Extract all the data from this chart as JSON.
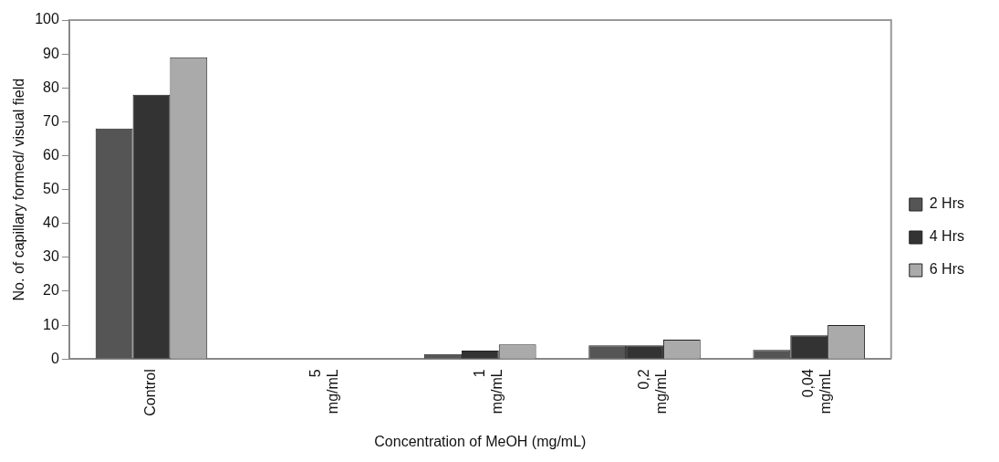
{
  "chart_data": {
    "type": "bar",
    "xlabel": "Concentration of MeOH (mg/mL)",
    "ylabel": "No. of capillary formed/ visual field",
    "categories": [
      "Control",
      "5 mg/mL",
      "1 mg/mL",
      "0,2 mg/mL",
      "0,04 mg/mL"
    ],
    "series": [
      {
        "name": "2 Hrs",
        "color": "#555555",
        "values": [
          68,
          0,
          1.5,
          4,
          2.7
        ]
      },
      {
        "name": "4 Hrs",
        "color": "#333333",
        "values": [
          78,
          0,
          2.5,
          4,
          7
        ]
      },
      {
        "name": "6 Hrs",
        "color": "#aaaaaa",
        "values": [
          89,
          0,
          4.3,
          5.7,
          10
        ]
      }
    ],
    "ylim": [
      0,
      100
    ],
    "yticks": [
      0,
      10,
      20,
      30,
      40,
      50,
      60,
      70,
      80,
      90,
      100
    ],
    "grid": false,
    "legend": "right"
  }
}
